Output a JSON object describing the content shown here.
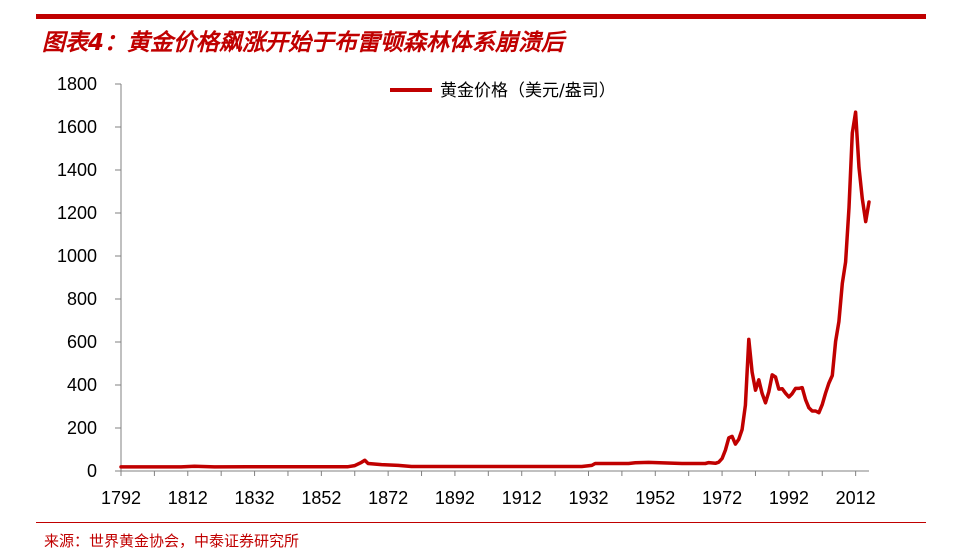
{
  "header": {
    "title": "图表4：黄金价格飙涨开始于布雷顿森林体系崩溃后"
  },
  "footer": {
    "source": "来源：世界黄金协会，中泰证券研究所"
  },
  "colors": {
    "accent": "#c00000",
    "line": "#c00000",
    "axis": "#808080"
  },
  "chart_data": {
    "type": "line",
    "title": "",
    "xlabel": "",
    "ylabel": "",
    "xlim": [
      1792,
      2016
    ],
    "ylim": [
      0,
      1800
    ],
    "xticks": [
      1792,
      1812,
      1832,
      1852,
      1872,
      1892,
      1912,
      1932,
      1952,
      1972,
      1992,
      2012
    ],
    "yticks": [
      0,
      200,
      400,
      600,
      800,
      1000,
      1200,
      1400,
      1600,
      1800
    ],
    "grid": false,
    "legend": "top-center",
    "series": [
      {
        "name": "黄金价格（美元/盎司）",
        "x": [
          1792,
          1800,
          1810,
          1814,
          1820,
          1830,
          1840,
          1850,
          1860,
          1862,
          1864,
          1865,
          1866,
          1870,
          1875,
          1879,
          1890,
          1900,
          1910,
          1920,
          1930,
          1933,
          1934,
          1940,
          1944,
          1946,
          1950,
          1960,
          1967,
          1968,
          1970,
          1971,
          1972,
          1973,
          1974,
          1975,
          1976,
          1977,
          1978,
          1979,
          1980,
          1981,
          1982,
          1983,
          1984,
          1985,
          1986,
          1987,
          1988,
          1989,
          1990,
          1991,
          1992,
          1993,
          1994,
          1995,
          1996,
          1997,
          1998,
          1999,
          2000,
          2001,
          2002,
          2003,
          2004,
          2005,
          2006,
          2007,
          2008,
          2009,
          2010,
          2011,
          2012,
          2013,
          2014,
          2015,
          2016
        ],
        "values": [
          19,
          19,
          19,
          22,
          19,
          20,
          20,
          20,
          20,
          25,
          40,
          50,
          35,
          30,
          26,
          21,
          21,
          21,
          21,
          21,
          21,
          26,
          35,
          35,
          35,
          38,
          40,
          35,
          35,
          39,
          36,
          41,
          58,
          97,
          154,
          161,
          125,
          148,
          193,
          306,
          612,
          460,
          376,
          424,
          361,
          317,
          368,
          447,
          437,
          381,
          383,
          362,
          344,
          360,
          384,
          384,
          388,
          331,
          294,
          279,
          279,
          271,
          310,
          363,
          409,
          444,
          603,
          695,
          872,
          972,
          1225,
          1572,
          1669,
          1411,
          1266,
          1160,
          1251
        ]
      }
    ]
  }
}
